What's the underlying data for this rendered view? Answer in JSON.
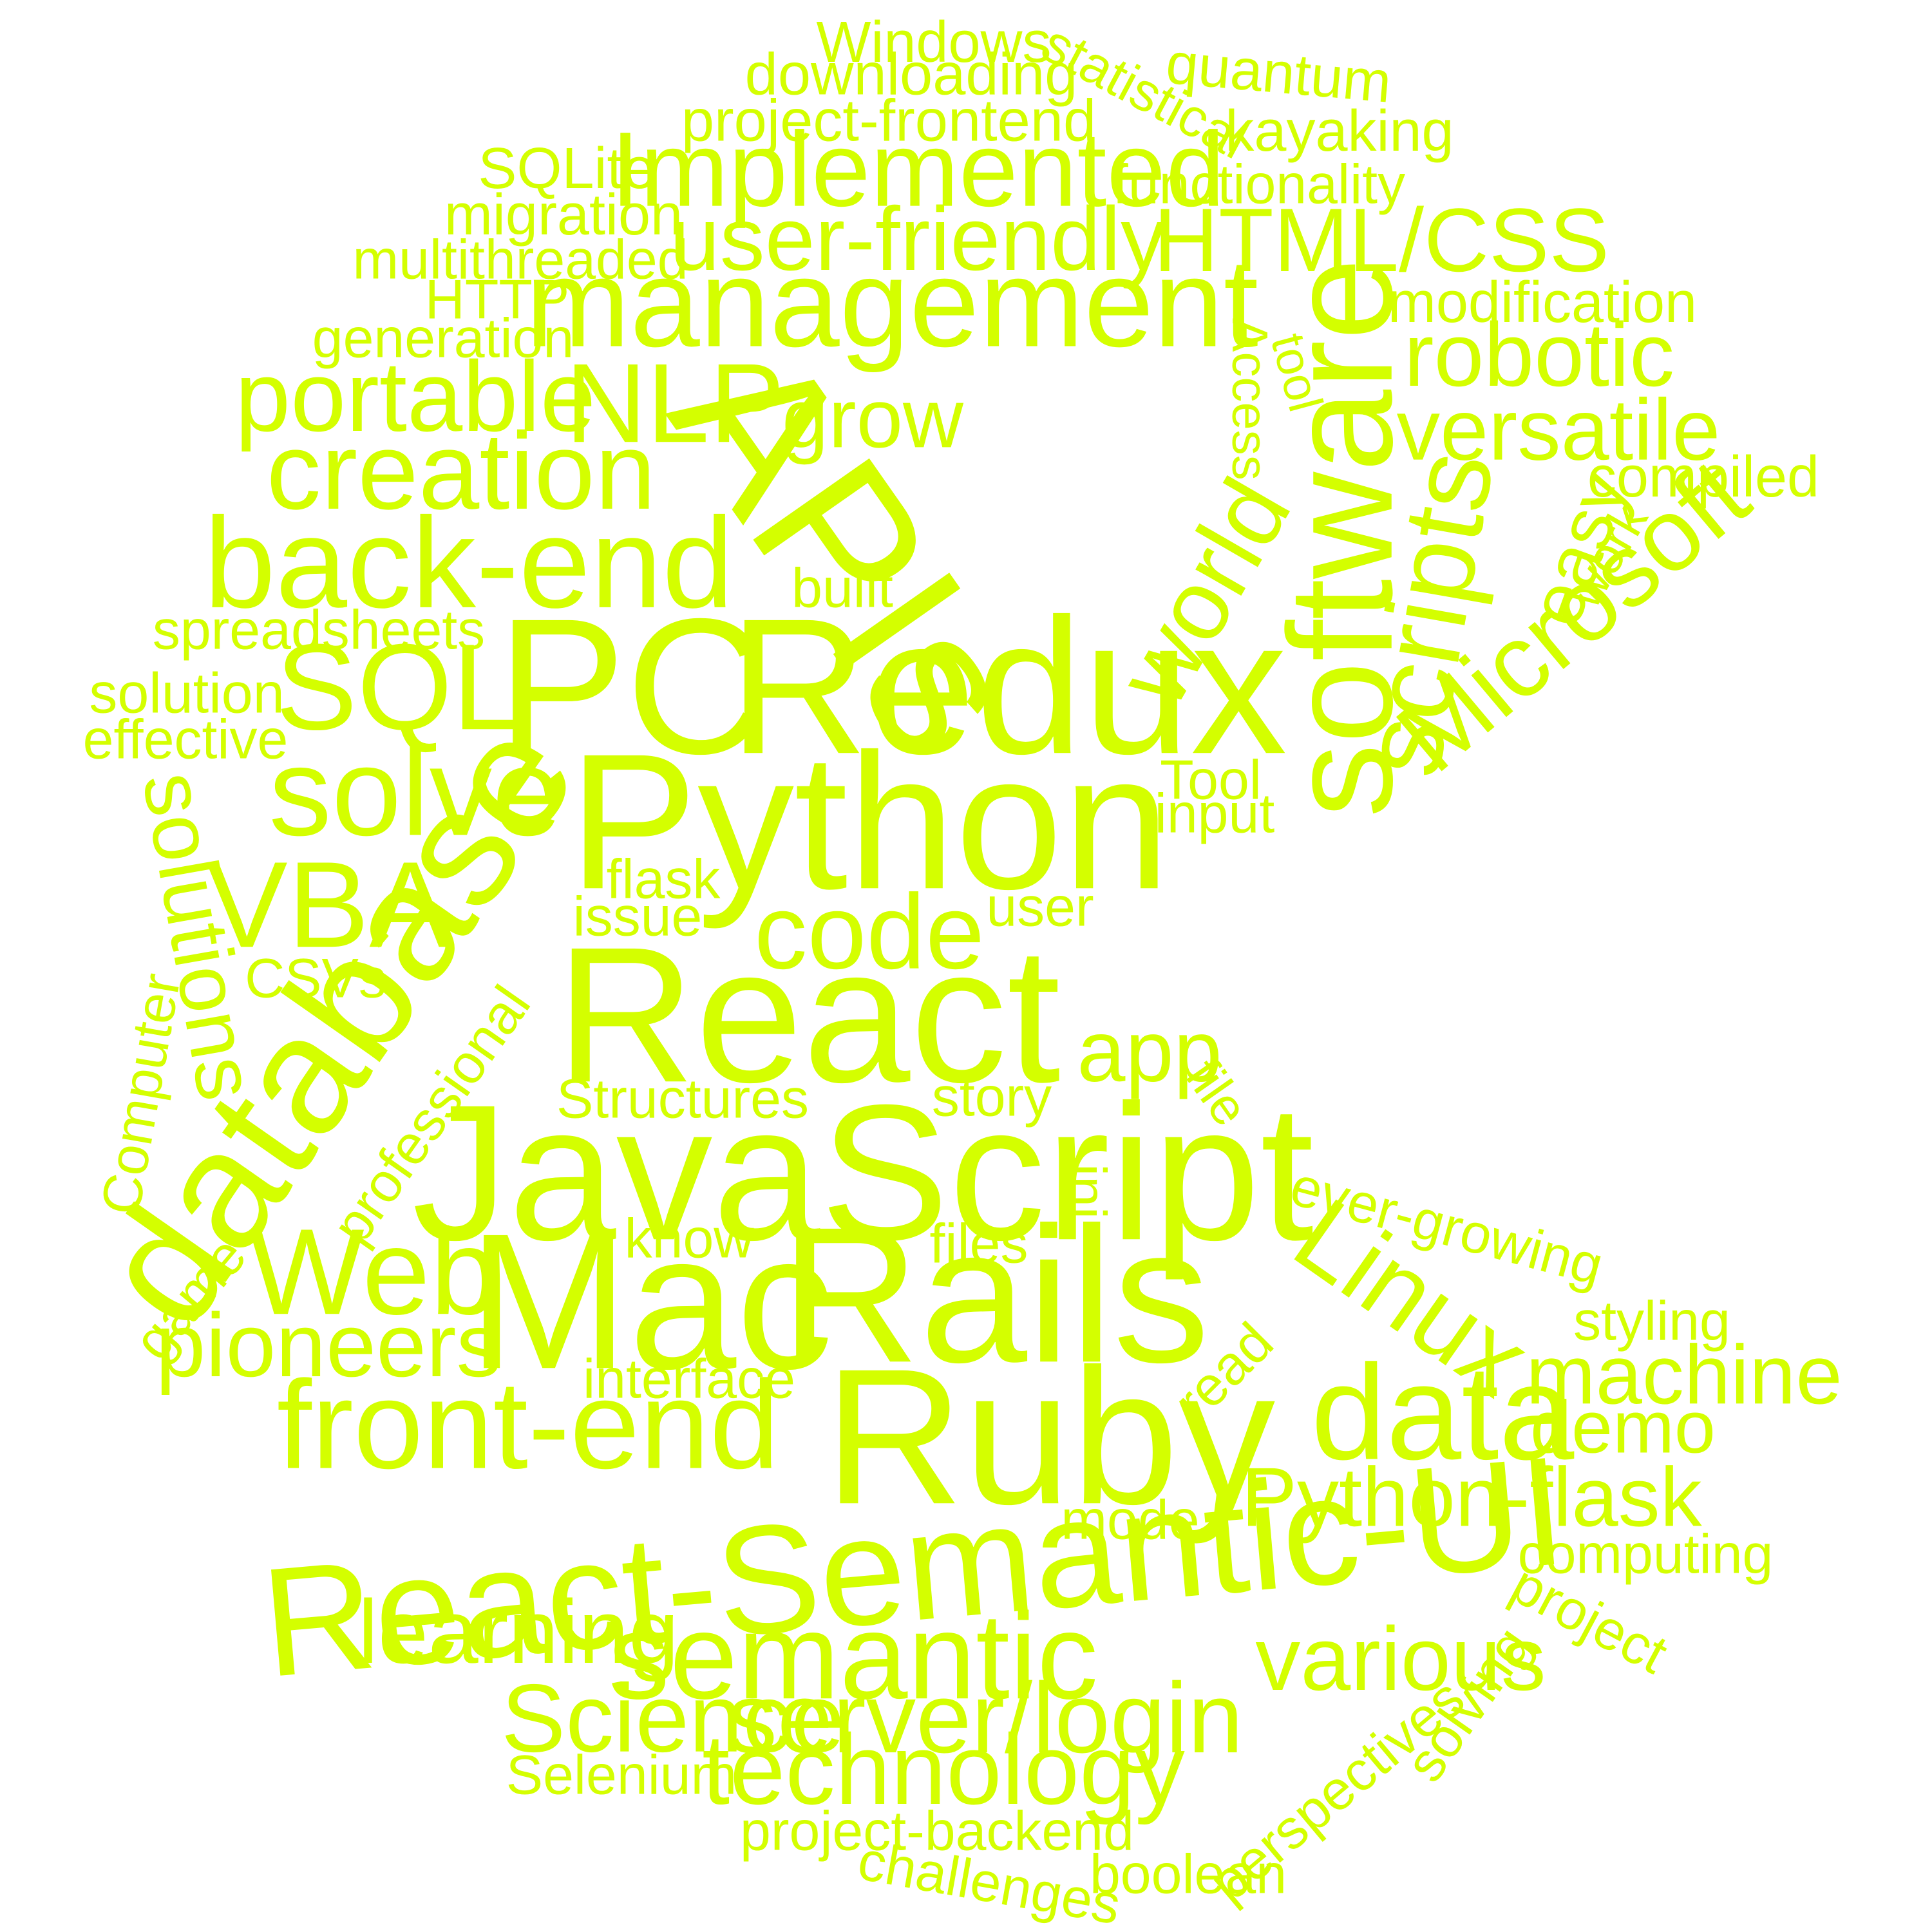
{
  "accent_color": "#d4ff00",
  "background_color": "#ffffff",
  "words": [
    {
      "text": "Windows"
    },
    {
      "text": "statistical"
    },
    {
      "text": "quantum"
    },
    {
      "text": "downloading"
    },
    {
      "text": "project-frontend"
    },
    {
      "text": "kayaking"
    },
    {
      "text": "SQLite"
    },
    {
      "text": "Implemented"
    },
    {
      "text": "functionality"
    },
    {
      "text": "migration"
    },
    {
      "text": "user-friendly"
    },
    {
      "text": "HTML/CSS"
    },
    {
      "text": "multithreaded"
    },
    {
      "text": "HTTP"
    },
    {
      "text": "management"
    },
    {
      "text": "software"
    },
    {
      "text": "modification"
    },
    {
      "text": "generation"
    },
    {
      "text": "Access"
    },
    {
      "text": "tool"
    },
    {
      "text": "robotic"
    },
    {
      "text": "portable"
    },
    {
      "text": "NLP"
    },
    {
      "text": "grow"
    },
    {
      "text": "versatile"
    },
    {
      "text": "creation"
    },
    {
      "text": "APIs"
    },
    {
      "text": "compiled"
    },
    {
      "text": "back-end"
    },
    {
      "text": "world"
    },
    {
      "text": "scripts"
    },
    {
      "text": "easy"
    },
    {
      "text": "work"
    },
    {
      "text": "built"
    },
    {
      "text": "Microsoft"
    },
    {
      "text": "spreadsheets"
    },
    {
      "text": "PC"
    },
    {
      "text": "Redux"
    },
    {
      "text": "SQL"
    },
    {
      "text": "solution"
    },
    {
      "text": "effective"
    },
    {
      "text": "solve"
    },
    {
      "text": "Python"
    },
    {
      "text": "Tool"
    },
    {
      "text": "input"
    },
    {
      "text": "solutions"
    },
    {
      "text": "VBA"
    },
    {
      "text": "database"
    },
    {
      "text": "flask"
    },
    {
      "text": "issue"
    },
    {
      "text": "code"
    },
    {
      "text": "user"
    },
    {
      "text": "CSVs"
    },
    {
      "text": "React"
    },
    {
      "text": "Computer"
    },
    {
      "text": "professional"
    },
    {
      "text": "app"
    },
    {
      "text": "file"
    },
    {
      "text": "Structures"
    },
    {
      "text": "story"
    },
    {
      "text": "JavaScript"
    },
    {
      "text": "ini"
    },
    {
      "text": "ever-growing"
    },
    {
      "text": "know"
    },
    {
      "text": "files"
    },
    {
      "text": "game"
    },
    {
      "text": "Web"
    },
    {
      "text": "Mac"
    },
    {
      "text": "Rails"
    },
    {
      "text": "Linux"
    },
    {
      "text": "styling"
    },
    {
      "text": "pioneers"
    },
    {
      "text": "read"
    },
    {
      "text": "machine"
    },
    {
      "text": "interface"
    },
    {
      "text": "front-end"
    },
    {
      "text": "Ruby"
    },
    {
      "text": "data"
    },
    {
      "text": "demo"
    },
    {
      "text": "Python-flask"
    },
    {
      "text": "mode"
    },
    {
      "text": "React-Semantic-UI"
    },
    {
      "text": "computing"
    },
    {
      "text": "learning"
    },
    {
      "text": "project"
    },
    {
      "text": "semantic"
    },
    {
      "text": "various"
    },
    {
      "text": "solving"
    },
    {
      "text": "Science"
    },
    {
      "text": "server/login"
    },
    {
      "text": "perspectives"
    },
    {
      "text": "Selenium"
    },
    {
      "text": "technology"
    },
    {
      "text": "project-backend"
    },
    {
      "text": "challenges"
    },
    {
      "text": "boolean"
    }
  ]
}
